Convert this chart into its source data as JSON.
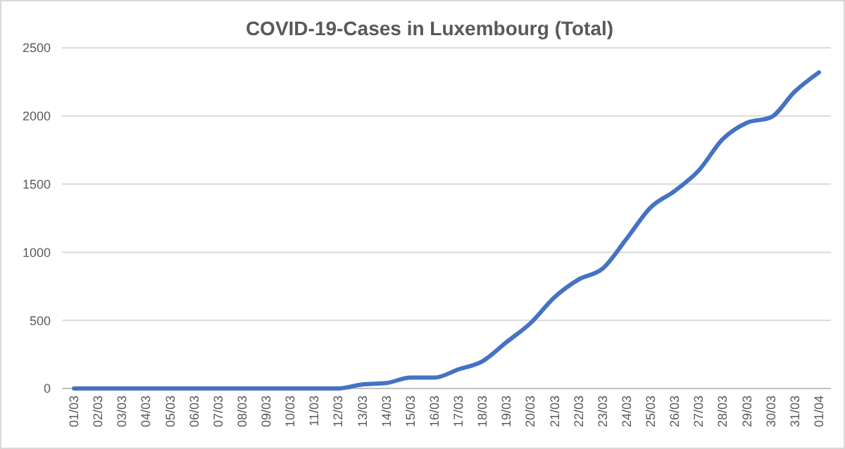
{
  "chart_data": {
    "type": "line",
    "title": "COVID-19-Cases in Luxembourg (Total)",
    "categories": [
      "01/03",
      "02/03",
      "03/03",
      "04/03",
      "05/03",
      "06/03",
      "07/03",
      "08/03",
      "09/03",
      "10/03",
      "11/03",
      "12/03",
      "13/03",
      "14/03",
      "15/03",
      "16/03",
      "17/03",
      "18/03",
      "19/03",
      "20/03",
      "21/03",
      "22/03",
      "23/03",
      "24/03",
      "25/03",
      "26/03",
      "27/03",
      "28/03",
      "29/03",
      "30/03",
      "31/03",
      "01/04"
    ],
    "series": [
      {
        "color": "#4472c4",
        "values": [
          0,
          0,
          0,
          0,
          0,
          0,
          0,
          0,
          0,
          0,
          0,
          0,
          30,
          40,
          80,
          80,
          140,
          200,
          340,
          480,
          670,
          800,
          880,
          1100,
          1330,
          1450,
          1600,
          1830,
          1950,
          1990,
          2180,
          2320
        ]
      }
    ],
    "ylim": [
      0,
      2500
    ],
    "yticks": [
      0,
      500,
      1000,
      1500,
      2000,
      2500
    ],
    "grid": "y",
    "marker": "none",
    "line_style": "solid"
  }
}
